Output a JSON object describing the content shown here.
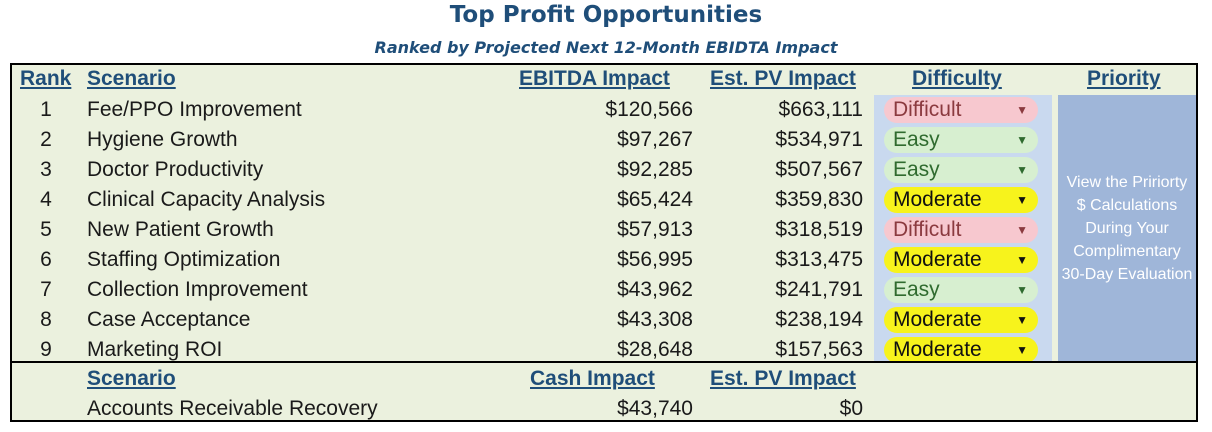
{
  "title": "Top Profit Opportunities",
  "subtitle": "Ranked by Projected Next 12-Month EBIDTA Impact",
  "headers": {
    "rank": "Rank",
    "scenario": "Scenario",
    "ebitda": "EBITDA Impact",
    "pv": "Est. PV Impact",
    "difficulty": "Difficulty",
    "priority": "Priority"
  },
  "rows": [
    {
      "rank": "1",
      "scenario": "Fee/PPO Improvement",
      "ebitda": "$120,566",
      "pv": "$663,111",
      "difficulty": "Difficult"
    },
    {
      "rank": "2",
      "scenario": "Hygiene Growth",
      "ebitda": "$97,267",
      "pv": "$534,971",
      "difficulty": "Easy"
    },
    {
      "rank": "3",
      "scenario": "Doctor Productivity",
      "ebitda": "$92,285",
      "pv": "$507,567",
      "difficulty": "Easy"
    },
    {
      "rank": "4",
      "scenario": "Clinical Capacity Analysis",
      "ebitda": "$65,424",
      "pv": "$359,830",
      "difficulty": "Moderate"
    },
    {
      "rank": "5",
      "scenario": "New Patient Growth",
      "ebitda": "$57,913",
      "pv": "$318,519",
      "difficulty": "Difficult"
    },
    {
      "rank": "6",
      "scenario": "Staffing Optimization",
      "ebitda": "$56,995",
      "pv": "$313,475",
      "difficulty": "Moderate"
    },
    {
      "rank": "7",
      "scenario": "Collection Improvement",
      "ebitda": "$43,962",
      "pv": "$241,791",
      "difficulty": "Easy"
    },
    {
      "rank": "8",
      "scenario": "Case Acceptance",
      "ebitda": "$43,308",
      "pv": "$238,194",
      "difficulty": "Moderate"
    },
    {
      "rank": "9",
      "scenario": "Marketing ROI",
      "ebitda": "$28,648",
      "pv": "$157,563",
      "difficulty": "Moderate"
    }
  ],
  "priority_text": "View the Pririorty $ Calculations During Your Complimentary 30-Day Evaluation",
  "bottom_headers": {
    "scenario": "Scenario",
    "cash": "Cash Impact",
    "pv": "Est. PV Impact"
  },
  "bottom_row": {
    "scenario": "Accounts Receivable Recovery",
    "cash": "$43,740",
    "pv": "$0"
  },
  "colors": {
    "title": "#1f4e79",
    "panel_bg": "#ebf1de",
    "difficult": "#f7c8cf",
    "easy": "#d7efd0",
    "moderate": "#f7f31c",
    "priority_bg": "#9fb6d9"
  },
  "icons": {
    "dropdown": "dropdown-arrow-icon"
  }
}
